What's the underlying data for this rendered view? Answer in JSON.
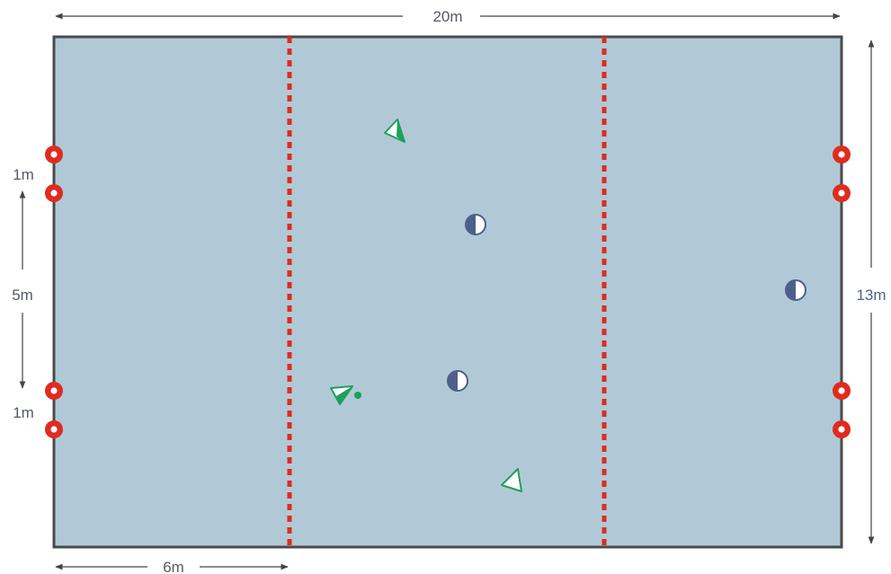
{
  "dimensions": {
    "width_label": "20m",
    "height_label": "13m",
    "zone_label": "6m",
    "gap_top_label": "1m",
    "middle_label": "5m",
    "gap_bottom_label": "1m"
  },
  "colors": {
    "court_fill": "#b1c9d6",
    "court_border": "#4a4a4a",
    "zone_line": "#e02b1f",
    "pole": "#e02b1f",
    "team_triangle": "#1ca05a",
    "team_circle": "#4f5f8c",
    "dimension_line": "#444444",
    "dimension_text": "#555b63"
  },
  "pieces": {
    "poles": [
      {
        "side": "left",
        "name": "pole-left-1"
      },
      {
        "side": "left",
        "name": "pole-left-2"
      },
      {
        "side": "left",
        "name": "pole-left-3"
      },
      {
        "side": "left",
        "name": "pole-left-4"
      },
      {
        "side": "right",
        "name": "pole-right-1"
      },
      {
        "side": "right",
        "name": "pole-right-2"
      },
      {
        "side": "right",
        "name": "pole-right-3"
      },
      {
        "side": "right",
        "name": "pole-right-4"
      }
    ],
    "triangle_players": 3,
    "circle_players": 3,
    "ball": 1
  }
}
